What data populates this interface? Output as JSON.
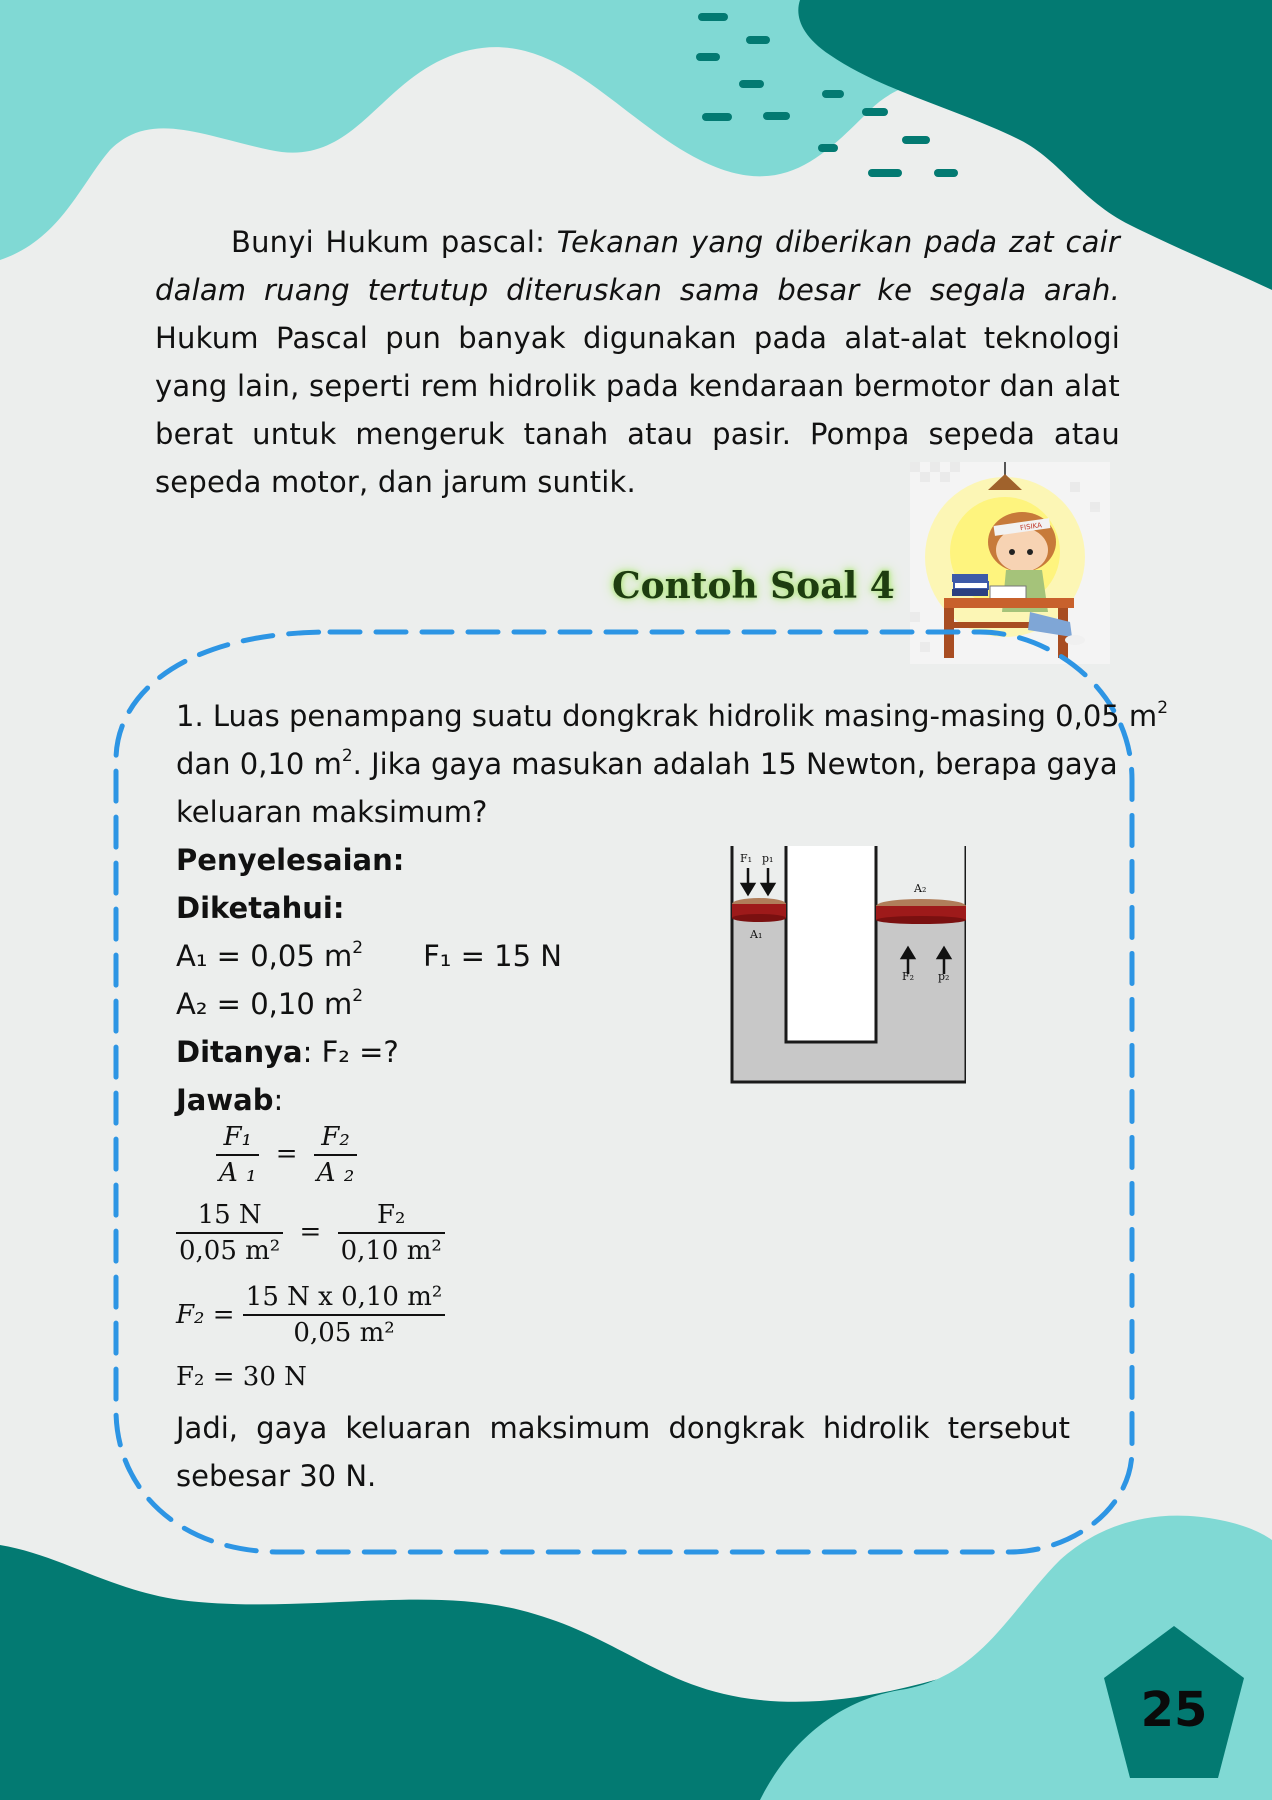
{
  "colors": {
    "dark_teal": "#037a72",
    "light_teal": "#80d9d4",
    "dash_blue": "#2d95e4",
    "title_glow": "#b8e88a"
  },
  "intro": {
    "lead": "Bunyi Hukum pascal: ",
    "italic": "Tekanan yang diberikan pada zat cair dalam ruang tertutup diteruskan sama besar ke segala arah.",
    "rest": " Hukum Pascal pun banyak digunakan pada alat-alat teknologi yang lain, seperti rem hidrolik pada kendaraan bermotor dan alat berat untuk mengeruk tanah atau pasir. Pompa sepeda atau sepeda motor, dan jarum suntik."
  },
  "example_title": "Contoh Soal 4",
  "problem": {
    "line1": "1. Luas penampang suatu dongkrak hidrolik masing-masing 0,05 m",
    "line2_a": "dan 0,10 m",
    "line2_b": ". Jika gaya masukan adalah 15 Newton, berapa gaya",
    "line3": "keluaran maksimum?",
    "sup2": "2"
  },
  "solution": {
    "penyelesaian": "Penyelesaian:",
    "diketahui": "Diketahui:",
    "a1": "A₁ = 0,05 m",
    "f1": "F₁ = 15 N",
    "a2": "A₂ = 0,10 m",
    "ditanya_label": "Ditanya",
    "ditanya_value": ": F₂ =?",
    "jawab_label": "Jawab",
    "jawab_colon": ":",
    "conclusion_1": "Jadi, gaya keluaran maksimum dongkrak hidrolik tersebut",
    "conclusion_2": "sebesar 30 N."
  },
  "equations": {
    "eq1_num_left": "F₁",
    "eq1_den_left": "A ₁",
    "eq1_num_right": "F₂",
    "eq1_den_right": "A ₂",
    "eq2_num_left": "15 N",
    "eq2_den_left": "0,05 m²",
    "eq2_num_right": "F₂",
    "eq2_den_right": "0,10 m²",
    "eq3_lhs": "F₂ =",
    "eq3_num": "15 N x 0,10 m²",
    "eq3_den": "0,05 m²",
    "eq4": "F₂ = 30 N",
    "equals": "="
  },
  "diagram": {
    "label_f1": "F₁",
    "label_p1": "p₁",
    "label_a1": "A₁",
    "label_a2": "A₂",
    "label_f2": "F₂",
    "label_p2": "p₂"
  },
  "illustration": {
    "badge": "FISIKA"
  },
  "page_number": "25"
}
